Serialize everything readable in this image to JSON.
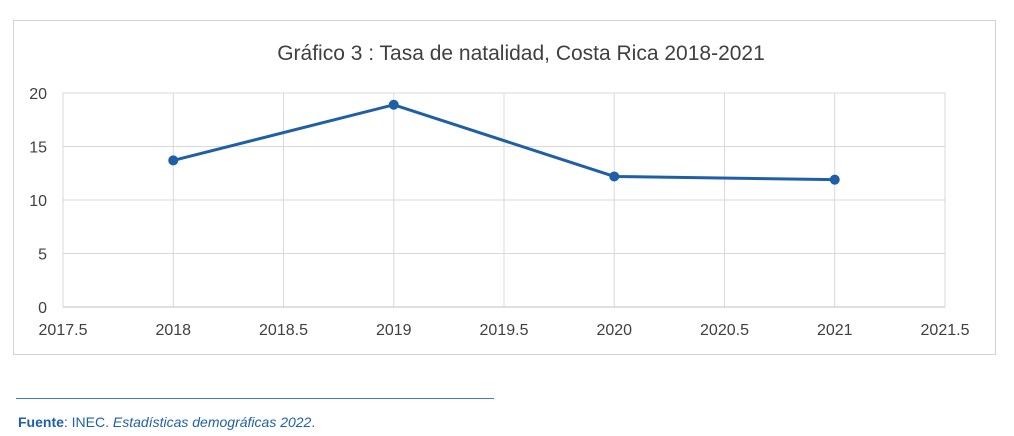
{
  "chart_data": {
    "type": "scatter",
    "mode": "lines+markers",
    "title": "Gráfico 3 : Tasa de natalidad, Costa Rica  2018-2021",
    "xlabel": "",
    "ylabel": "",
    "x": [
      2018,
      2019,
      2020,
      2021
    ],
    "y": [
      13.7,
      18.9,
      12.2,
      11.9
    ],
    "xlim": [
      2017.5,
      2021.5
    ],
    "ylim": [
      0,
      20
    ],
    "xticks": [
      "2017.5",
      "2018",
      "2018.5",
      "2019",
      "2019.5",
      "2020",
      "2020.5",
      "2021",
      "2021.5"
    ],
    "yticks": [
      "0",
      "5",
      "10",
      "15",
      "20"
    ],
    "grid": true,
    "legend": "none",
    "series_color": "#1f5fa8",
    "grid_color": "#d9d9d9",
    "text_color": "#404040"
  },
  "source": {
    "label": "Fuente",
    "separator": ":",
    "org": " INEC. ",
    "publication": "Estadísticas demográficas 2022",
    "end": "."
  }
}
